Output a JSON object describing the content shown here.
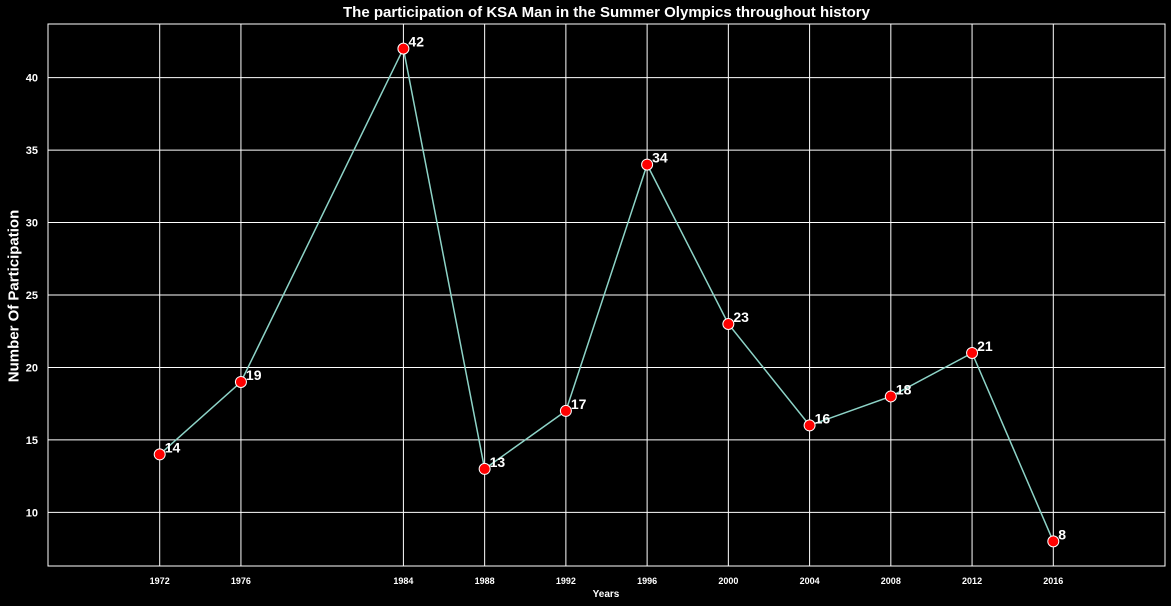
{
  "chart_data": {
    "type": "line",
    "title": "The participation of KSA Man in the Summer Olympics throughout history",
    "xlabel": "Years",
    "ylabel": "Number Of Participation",
    "x": [
      1972,
      1976,
      1984,
      1988,
      1992,
      1996,
      2000,
      2004,
      2008,
      2012,
      2016
    ],
    "x_tick_labels": [
      "1972",
      "1976",
      "1984",
      "1988",
      "1992",
      "1996",
      "2000",
      "2004",
      "2008",
      "2012",
      "2016"
    ],
    "series": [
      {
        "values": [
          14,
          19,
          42,
          13,
          17,
          34,
          23,
          16,
          18,
          21,
          8
        ]
      }
    ],
    "data_labels": [
      "14",
      "19",
      "42",
      "13",
      "17",
      "34",
      "23",
      "16",
      "18",
      "21",
      "8"
    ],
    "y_ticks": [
      10,
      15,
      20,
      25,
      30,
      35,
      40
    ],
    "y_tick_labels": [
      "10",
      "15",
      "20",
      "25",
      "30",
      "35",
      "40"
    ],
    "xlim": [
      1966.5,
      2021.5
    ],
    "ylim": [
      6.3,
      43.7
    ],
    "grid": true,
    "colors": {
      "background": "#000000",
      "line": "#8dd3c7",
      "marker_fill": "#ff0000",
      "marker_edge": "#ffffff",
      "grid": "#ffffff",
      "text": "#ffffff"
    }
  }
}
